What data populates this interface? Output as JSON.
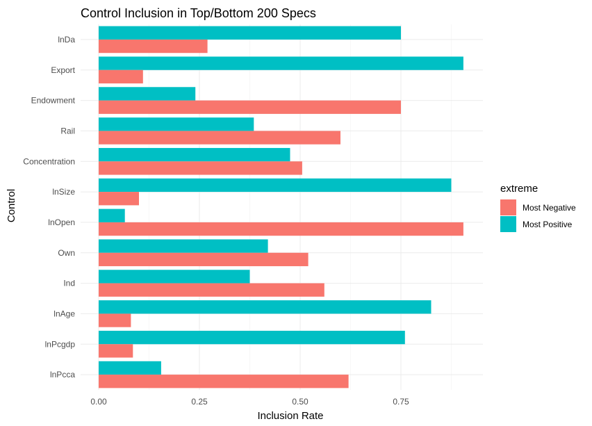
{
  "chart_data": {
    "type": "bar",
    "orientation": "horizontal",
    "title": "Control Inclusion in Top/Bottom 200 Specs",
    "xlabel": "Inclusion Rate",
    "ylabel": "Control",
    "xlim": [
      0,
      0.95
    ],
    "x_ticks": [
      0,
      0.25,
      0.5,
      0.75
    ],
    "x_tick_labels": [
      "0.00",
      "0.25",
      "0.50",
      "0.75"
    ],
    "grid": true,
    "legend": {
      "title": "extreme",
      "position": "right"
    },
    "categories": [
      "lnDa",
      "Export",
      "Endowment",
      "Rail",
      "Concentration",
      "lnSize",
      "lnOpen",
      "Own",
      "Ind",
      "lnAge",
      "lnPcgdp",
      "lnPcca"
    ],
    "series": [
      {
        "name": "Most Negative",
        "color": "#F8766D",
        "values": [
          0.27,
          0.11,
          0.75,
          0.6,
          0.505,
          0.1,
          0.905,
          0.52,
          0.56,
          0.08,
          0.085,
          0.62
        ]
      },
      {
        "name": "Most Positive",
        "color": "#00BFC4",
        "values": [
          0.75,
          0.905,
          0.24,
          0.385,
          0.475,
          0.875,
          0.065,
          0.42,
          0.375,
          0.825,
          0.76,
          0.155
        ]
      }
    ]
  }
}
